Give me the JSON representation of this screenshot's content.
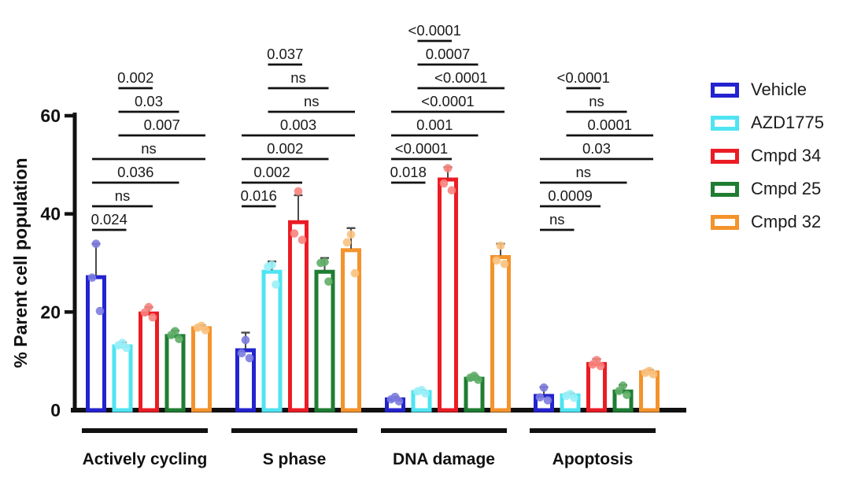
{
  "chart_data": {
    "type": "bar",
    "title": "",
    "xlabel": "",
    "ylabel": "% Parent cell population",
    "ylim": [
      0,
      60
    ],
    "yticks": [
      0,
      20,
      40,
      60
    ],
    "grid": false,
    "legend_position": "right",
    "bar_style": "open-outline-white-fill",
    "categories": [
      "Actively cycling",
      "S phase",
      "DNA damage",
      "Apoptosis"
    ],
    "series": [
      {
        "name": "Vehicle",
        "color": "#2323cf",
        "point_color": "#7c7ce0",
        "values": [
          27.1,
          12.2,
          2.2,
          2.9
        ],
        "errors_upper": [
          6.8,
          3.6,
          0.5,
          1.8
        ],
        "points": [
          [
            33.9,
            27.0,
            20.2
          ],
          [
            14.3,
            11.6,
            10.6
          ],
          [
            2.7,
            2.2,
            1.8
          ],
          [
            4.6,
            2.6,
            2.0
          ]
        ]
      },
      {
        "name": "AZD1775",
        "color": "#4fe4f2",
        "point_color": "#9af0f7",
        "values": [
          13.0,
          28.2,
          3.7,
          3.0
        ],
        "errors_upper": [
          0.8,
          2.1,
          0.4,
          0.4
        ],
        "points": [
          [
            13.7,
            13.2,
            12.7
          ],
          [
            29.6,
            29.2,
            25.6
          ],
          [
            4.1,
            3.8,
            3.4
          ],
          [
            3.3,
            2.9,
            2.5
          ]
        ]
      },
      {
        "name": "Cmpd 34",
        "color": "#eb1c24",
        "point_color": "#f8837d",
        "values": [
          19.7,
          38.3,
          47.0,
          9.4
        ],
        "errors_upper": [
          1.3,
          5.5,
          2.5,
          1.0
        ],
        "points": [
          [
            21.0,
            19.9,
            18.9
          ],
          [
            44.6,
            36.0,
            34.7
          ],
          [
            49.3,
            46.2,
            44.8
          ],
          [
            10.2,
            9.3,
            9.0
          ]
        ]
      },
      {
        "name": "Cmpd 25",
        "color": "#1f7d32",
        "point_color": "#5fae68",
        "values": [
          15.1,
          28.2,
          6.4,
          3.8
        ],
        "errors_upper": [
          1.1,
          2.8,
          0.6,
          1.3
        ],
        "points": [
          [
            16.1,
            15.3,
            14.5
          ],
          [
            30.2,
            30.0,
            26.2
          ],
          [
            7.0,
            6.6,
            6.2
          ],
          [
            5.0,
            3.9,
            3.1
          ]
        ]
      },
      {
        "name": "Cmpd 32",
        "color": "#f3932c",
        "point_color": "#f9c17e",
        "values": [
          16.7,
          32.6,
          31.2,
          7.7
        ],
        "errors_upper": [
          0.6,
          4.5,
          2.7,
          0.5
        ],
        "points": [
          [
            17.2,
            16.8,
            16.3
          ],
          [
            35.8,
            34.2,
            27.9
          ],
          [
            33.5,
            30.5,
            29.8
          ],
          [
            8.0,
            7.6,
            7.3
          ]
        ]
      }
    ],
    "significance": [
      {
        "category": "Actively cycling",
        "brackets": [
          {
            "pair": [
              0,
              1
            ],
            "label": "0.024"
          },
          {
            "pair": [
              0,
              2
            ],
            "label": "ns"
          },
          {
            "pair": [
              0,
              3
            ],
            "label": "0.036"
          },
          {
            "pair": [
              0,
              4
            ],
            "label": "ns"
          },
          {
            "pair": [
              1,
              4
            ],
            "label": "0.007"
          },
          {
            "pair": [
              1,
              3
            ],
            "label": "0.03"
          },
          {
            "pair": [
              1,
              2
            ],
            "label": "0.002"
          }
        ]
      },
      {
        "category": "S phase",
        "brackets": [
          {
            "pair": [
              0,
              1
            ],
            "label": "0.016"
          },
          {
            "pair": [
              0,
              2
            ],
            "label": "0.002"
          },
          {
            "pair": [
              0,
              3
            ],
            "label": "0.002"
          },
          {
            "pair": [
              0,
              4
            ],
            "label": "0.003"
          },
          {
            "pair": [
              1,
              4
            ],
            "label": "ns"
          },
          {
            "pair": [
              1,
              3
            ],
            "label": "ns"
          },
          {
            "pair": [
              1,
              2
            ],
            "label": "0.037"
          }
        ]
      },
      {
        "category": "DNA damage",
        "brackets": [
          {
            "pair": [
              0,
              1
            ],
            "label": "0.018"
          },
          {
            "pair": [
              0,
              2
            ],
            "label": "<0.0001"
          },
          {
            "pair": [
              0,
              3
            ],
            "label": "0.001"
          },
          {
            "pair": [
              0,
              4
            ],
            "label": "<0.0001"
          },
          {
            "pair": [
              1,
              4
            ],
            "label": "<0.0001"
          },
          {
            "pair": [
              1,
              3
            ],
            "label": "0.0007"
          },
          {
            "pair": [
              1,
              2
            ],
            "label": "<0.0001"
          }
        ]
      },
      {
        "category": "Apoptosis",
        "brackets": [
          {
            "pair": [
              0,
              1
            ],
            "label": "ns"
          },
          {
            "pair": [
              0,
              2
            ],
            "label": "0.0009"
          },
          {
            "pair": [
              0,
              3
            ],
            "label": "ns"
          },
          {
            "pair": [
              0,
              4
            ],
            "label": "0.03"
          },
          {
            "pair": [
              1,
              4
            ],
            "label": "0.0001"
          },
          {
            "pair": [
              1,
              3
            ],
            "label": "ns"
          },
          {
            "pair": [
              1,
              2
            ],
            "label": "<0.0001"
          }
        ]
      }
    ]
  },
  "legend": {
    "entries": [
      "Vehicle",
      "AZD1775",
      "Cmpd 34",
      "Cmpd 25",
      "Cmpd 32"
    ]
  },
  "colors": {
    "axis": "#111111",
    "bracket_line": "#111111",
    "bracket_text": "#1a1a1a",
    "error_bar": "#4a4a4a",
    "background": "#ffffff"
  }
}
